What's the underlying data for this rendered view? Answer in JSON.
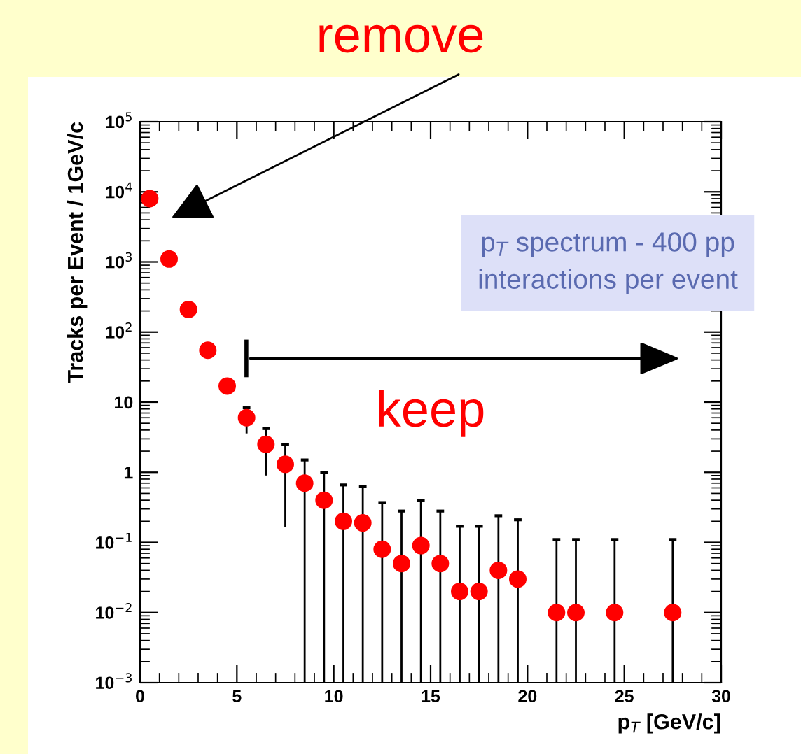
{
  "chart_data": {
    "type": "scatter",
    "xlabel": "p$_{T}$ [GeV/c]",
    "ylabel": "Tracks per Event / 1GeV/c",
    "x": [
      0.5,
      1.5,
      2.5,
      3.5,
      4.5,
      5.5,
      6.5,
      7.5,
      8.5,
      9.5,
      10.5,
      11.5,
      12.5,
      13.5,
      14.5,
      15.5,
      16.5,
      17.5,
      18.5,
      19.5,
      21.5,
      22.5,
      24.5,
      27.5
    ],
    "series": [
      {
        "color": "#ff0000",
        "values": [
          8000,
          1100,
          210,
          55,
          17,
          6,
          2.5,
          1.3,
          0.7,
          0.4,
          0.2,
          0.19,
          0.08,
          0.05,
          0.09,
          0.05,
          0.02,
          0.02,
          0.04,
          0.03,
          0.01,
          0.01,
          0.01,
          0.01
        ],
        "errors": [
          null,
          null,
          null,
          null,
          null,
          [
            3.7,
            8.3
          ],
          [
            0.93,
            4.2
          ],
          [
            0.17,
            2.5
          ],
          [
            0.001,
            1.5
          ],
          [
            0.001,
            1.0
          ],
          [
            0.001,
            0.66
          ],
          [
            0.001,
            0.63
          ],
          [
            0.001,
            0.37
          ],
          [
            0.001,
            0.28
          ],
          [
            0.001,
            0.4
          ],
          [
            0.001,
            0.28
          ],
          [
            0.001,
            0.17
          ],
          [
            0.001,
            0.17
          ],
          [
            0.001,
            0.24
          ],
          [
            0.001,
            0.21
          ],
          [
            0.001,
            0.11
          ],
          [
            0.001,
            0.11
          ],
          [
            0.001,
            0.11
          ],
          [
            0.001,
            0.11
          ]
        ]
      }
    ],
    "xlim": [
      0,
      30
    ],
    "xticks": [
      0,
      5,
      10,
      15,
      20,
      25,
      30
    ],
    "ylim": [
      0.001,
      100000
    ],
    "yticks": [
      {
        "value": 0.001,
        "label": "10$^{−3}$"
      },
      {
        "value": 0.01,
        "label": "10$^{−2}$"
      },
      {
        "value": 0.1,
        "label": "10$^{−1}$"
      },
      1,
      10,
      {
        "value": 100,
        "label": "10$^{2}$"
      },
      {
        "value": 1000,
        "label": "10$^{3}$"
      },
      {
        "value": 10000,
        "label": "10$^{4}$"
      },
      {
        "value": 100000,
        "label": "10$^{5}$"
      }
    ],
    "log": "y",
    "marker": "circle",
    "grid": false,
    "legend": false,
    "annotations": [
      "remove",
      "keep",
      "p$_{T}$ spectrum - 400 pp\ninteractions per event"
    ]
  }
}
